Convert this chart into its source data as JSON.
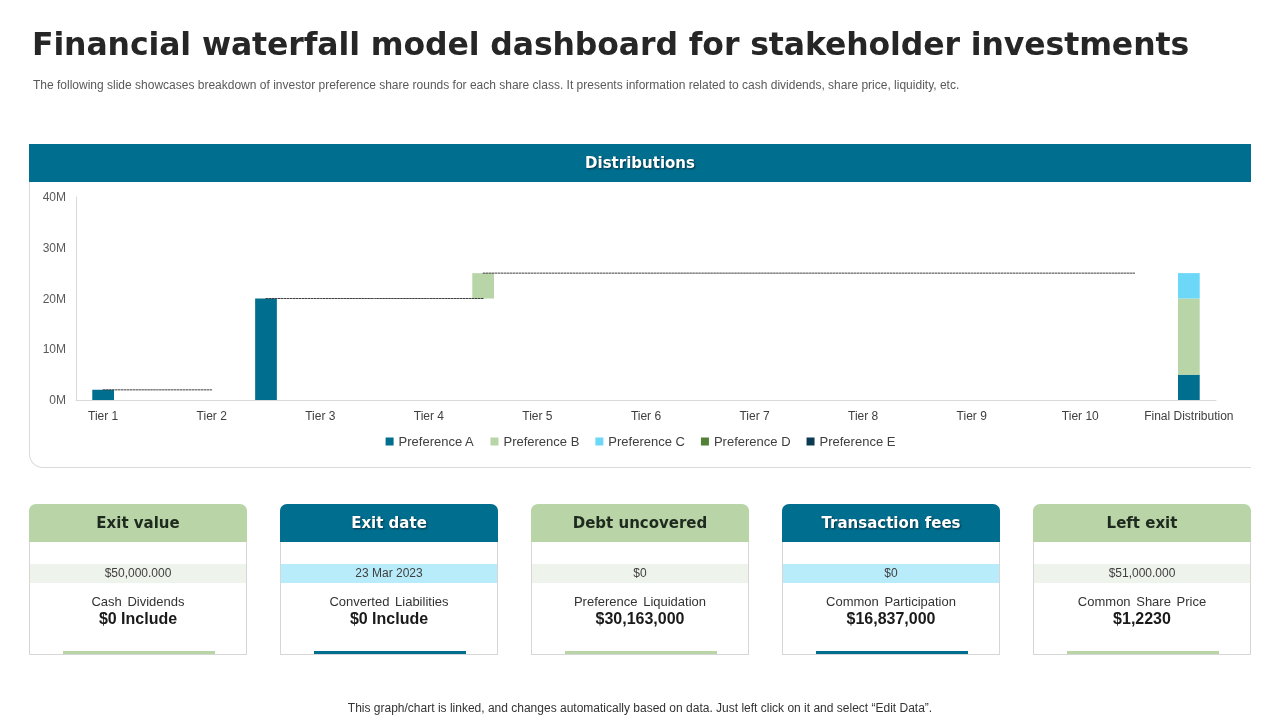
{
  "chart_data": [
    {
      "type": "other",
      "title": "Financial waterfall model dashboard for stakeholder investments",
      "subtitle": "The following slide showcases breakdown of investor preference share rounds for each share class. It presents information related to cash dividends, share price, liquidity, etc.",
      "annotations": [
        "This graph/chart is linked, and changes automatically based on data. Just left click on it and select “Edit Data”."
      ]
    },
    {
      "type": "bar",
      "title": "Distributions",
      "categories": [
        "Tier 1",
        null,
        "Tier 2",
        null,
        "Tier 3",
        null,
        "Tier 4",
        null,
        "Tier 5",
        null,
        "Tier 6",
        null,
        "Tier 7",
        null,
        "Tier 8",
        null,
        "Tier 9",
        null,
        "Tier 10",
        null,
        "Final Distribution"
      ],
      "series": [
        {
          "name": "Preference A",
          "color": "#006e8f",
          "values": [
            2,
            null,
            null,
            20,
            null,
            null,
            null,
            null,
            null,
            null,
            null,
            null,
            null,
            null,
            null,
            null,
            null,
            null,
            null,
            null,
            5
          ]
        },
        {
          "name": "Preference B",
          "color": "#b8d5a7",
          "values": [
            null,
            null,
            null,
            null,
            null,
            null,
            null,
            5,
            null,
            null,
            null,
            null,
            null,
            null,
            null,
            null,
            null,
            null,
            null,
            null,
            15
          ],
          "base": [
            null,
            null,
            null,
            null,
            null,
            null,
            null,
            20,
            null,
            null,
            null,
            null,
            null,
            null,
            null,
            null,
            null,
            null,
            null,
            null,
            5
          ]
        },
        {
          "name": "Preference C",
          "color": "#6dd7f8",
          "values": [
            null,
            null,
            null,
            null,
            null,
            null,
            null,
            null,
            null,
            null,
            null,
            null,
            null,
            null,
            null,
            null,
            null,
            null,
            null,
            null,
            5
          ],
          "base": [
            null,
            null,
            null,
            null,
            null,
            null,
            null,
            null,
            null,
            null,
            null,
            null,
            null,
            null,
            null,
            null,
            null,
            null,
            null,
            null,
            20
          ]
        },
        {
          "name": "Preference D",
          "color": "#4f8136",
          "values": [
            null,
            null,
            null,
            null,
            null,
            null,
            null,
            null,
            null,
            null,
            null,
            null,
            null,
            null,
            null,
            null,
            null,
            null,
            null,
            null,
            null
          ]
        },
        {
          "name": "Preference E",
          "color": "#0c3a50",
          "values": [
            null,
            null,
            null,
            null,
            null,
            null,
            null,
            null,
            null,
            null,
            null,
            null,
            null,
            null,
            null,
            null,
            null,
            null,
            null,
            null,
            null
          ]
        },
        {
          "type": "line",
          "color": "#404040",
          "line_style": "dashed",
          "values": [
            2,
            2,
            2,
            null,
            null,
            null,
            null,
            null,
            null,
            null,
            null,
            null,
            null,
            null,
            null,
            null,
            null,
            null,
            null,
            null,
            null
          ]
        },
        {
          "type": "line",
          "color": "#404040",
          "line_style": "dashed",
          "values": [
            null,
            null,
            null,
            20,
            20,
            20,
            20,
            20,
            null,
            null,
            null,
            null,
            null,
            null,
            null,
            null,
            null,
            null,
            null,
            null,
            null
          ]
        },
        {
          "type": "line",
          "color": "#404040",
          "line_style": "dashed",
          "values": [
            null,
            null,
            null,
            null,
            null,
            null,
            null,
            25,
            25,
            25,
            25,
            25,
            25,
            25,
            25,
            25,
            25,
            25,
            25,
            25,
            null
          ]
        }
      ],
      "ylim": [
        0,
        40
      ],
      "yticks": [
        {
          "value": 0,
          "label": "0M"
        },
        {
          "value": 10,
          "label": "10M"
        },
        {
          "value": 20,
          "label": "20M"
        },
        {
          "value": 30,
          "label": "30M"
        },
        {
          "value": 40,
          "label": "40M"
        }
      ],
      "legend": "bottom"
    },
    {
      "type": "other",
      "title": "Exit value",
      "annotations": [
        "$50,000.000",
        "Cash Dividends",
        "$0 Include"
      ]
    },
    {
      "type": "other",
      "title": "Exit date",
      "annotations": [
        "23 Mar 2023",
        "Converted Liabilities",
        "$0 Include"
      ]
    },
    {
      "type": "other",
      "title": "Debt uncovered",
      "annotations": [
        "$0",
        "Preference Liquidation",
        "$30,163,000"
      ]
    },
    {
      "type": "other",
      "title": "Transaction fees",
      "annotations": [
        "$0",
        "Common Participation",
        "$16,837,000"
      ]
    },
    {
      "type": "other",
      "title": "Left exit",
      "annotations": [
        "$51,000.000",
        "Common Share Price",
        "$1,2230"
      ]
    }
  ]
}
